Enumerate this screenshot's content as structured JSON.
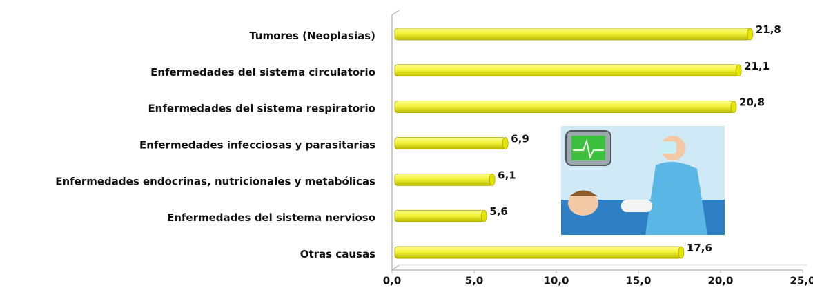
{
  "chart_data": {
    "type": "bar",
    "orientation": "horizontal",
    "categories": [
      "Tumores (Neoplasias)",
      "Enfermedades del sistema circulatorio",
      "Enfermedades del sistema respiratorio",
      "Enfermedades infecciosas y parasitarias",
      "Enfermedades endocrinas, nutricionales y metabólicas",
      "Enfermedades del sistema nervioso",
      "Otras causas"
    ],
    "values": [
      21.8,
      21.1,
      20.8,
      6.9,
      6.1,
      5.6,
      17.6
    ],
    "value_labels": [
      "21,8",
      "21,1",
      "20,8",
      "6,9",
      "6,1",
      "5,6",
      "17,6"
    ],
    "color": "#f2f230",
    "xlim": [
      0,
      25
    ],
    "xticks": [
      {
        "value": 0,
        "label": "0,0"
      },
      {
        "value": 5,
        "label": "5,0"
      },
      {
        "value": 10,
        "label": "10,0"
      },
      {
        "value": 15,
        "label": "15,0"
      },
      {
        "value": 20,
        "label": "20,0"
      },
      {
        "value": 25,
        "label": "25,0"
      }
    ],
    "grid": false
  }
}
